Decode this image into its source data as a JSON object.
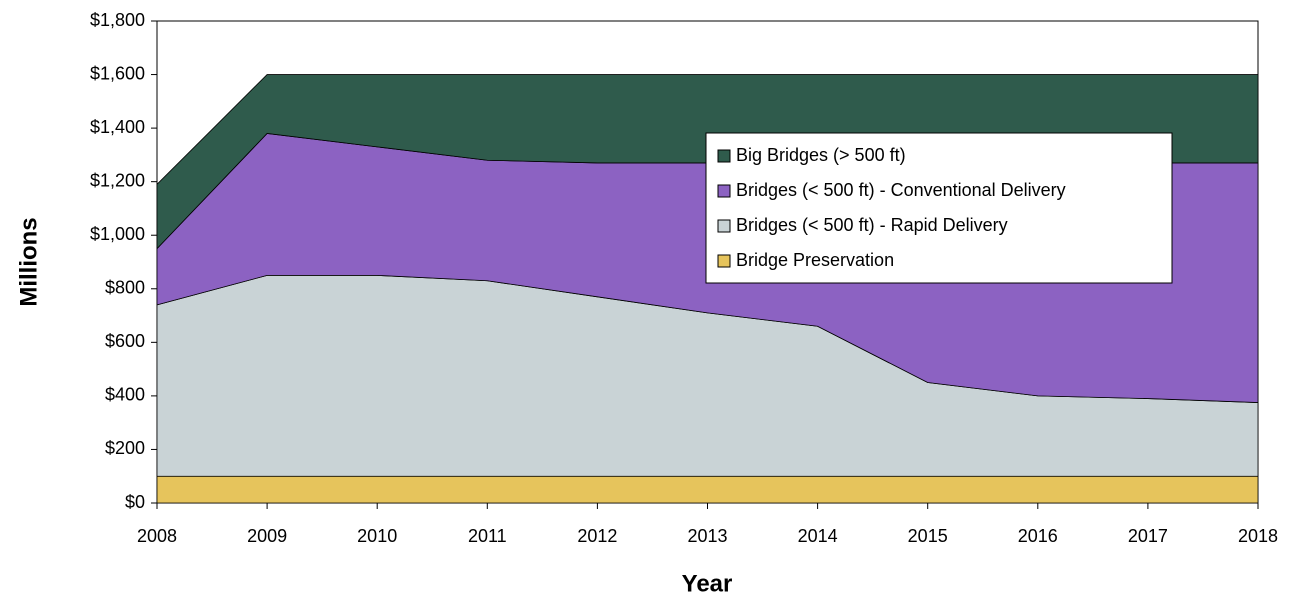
{
  "chart_data": {
    "type": "stacked_area",
    "x_label": "Year",
    "y_label": "Millions",
    "x": [
      2008,
      2009,
      2010,
      2011,
      2012,
      2013,
      2014,
      2015,
      2016,
      2017,
      2018
    ],
    "series": [
      {
        "name": "Bridge Preservation",
        "color": "#e6c45c",
        "values": [
          100,
          100,
          100,
          100,
          100,
          100,
          100,
          100,
          100,
          100,
          100
        ]
      },
      {
        "name": "Bridges (< 500 ft) - Rapid Delivery",
        "color": "#c9d3d6",
        "values": [
          640,
          750,
          750,
          730,
          670,
          610,
          560,
          350,
          300,
          290,
          275
        ]
      },
      {
        "name": "Bridges (< 500 ft) - Conventional Delivery",
        "color": "#8c62c2",
        "values": [
          210,
          530,
          480,
          450,
          500,
          560,
          610,
          820,
          870,
          880,
          895
        ]
      },
      {
        "name": "Big Bridges (> 500 ft)",
        "color": "#2f5b4c",
        "values": [
          240,
          220,
          270,
          320,
          330,
          330,
          330,
          330,
          330,
          330,
          330
        ]
      }
    ],
    "xlim": [
      2008,
      2018
    ],
    "xticks": [
      2008,
      2009,
      2010,
      2011,
      2012,
      2013,
      2014,
      2015,
      2016,
      2017,
      2018
    ],
    "ylim": [
      0,
      1800
    ],
    "yticks": [
      {
        "value": 0,
        "label": "$0"
      },
      {
        "value": 200,
        "label": "$200"
      },
      {
        "value": 400,
        "label": "$400"
      },
      {
        "value": 600,
        "label": "$600"
      },
      {
        "value": 800,
        "label": "$800"
      },
      {
        "value": 1000,
        "label": "$1,000"
      },
      {
        "value": 1200,
        "label": "$1,200"
      },
      {
        "value": 1400,
        "label": "$1,400"
      },
      {
        "value": 1600,
        "label": "$1,600"
      },
      {
        "value": 1800,
        "label": "$1,800"
      }
    ],
    "legend": "upper right"
  }
}
